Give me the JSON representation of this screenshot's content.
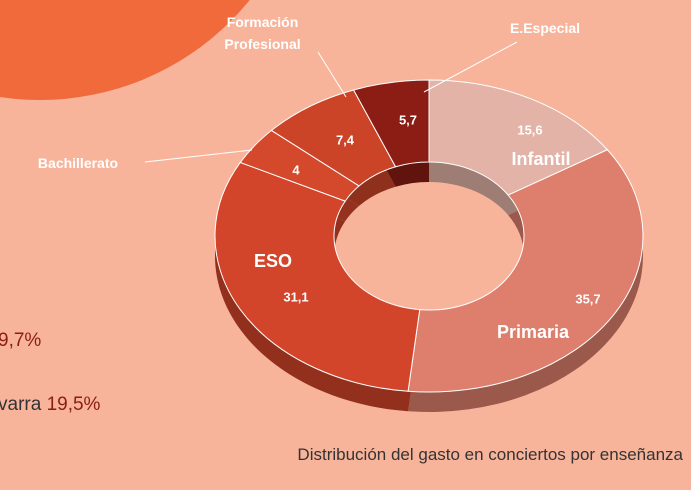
{
  "chart_data": {
    "type": "donut",
    "categories": [
      "Infantil",
      "Primaria",
      "ESO",
      "Bachillerato",
      "Formación Profesional",
      "E.Especial"
    ],
    "values": [
      15.6,
      35.7,
      31.1,
      4,
      7.4,
      5.7
    ],
    "value_labels": [
      "15,6",
      "35,7",
      "31,1",
      "4",
      "7,4",
      "5,7"
    ],
    "colors": [
      "#e2b3a6",
      "#dd7f6c",
      "#d2452a",
      "#d4482c",
      "#cc4428",
      "#8b1d14"
    ],
    "caption": "Distribución del gasto en conciertos por enseñanza"
  },
  "side_texts": [
    "9,7%",
    "varra",
    "19,5%"
  ]
}
